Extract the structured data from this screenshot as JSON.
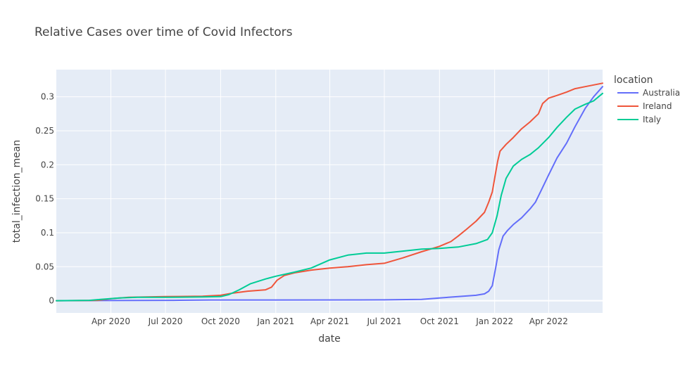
{
  "chart_data": {
    "type": "line",
    "title": "Relative Cases over time of Covid Infectors",
    "xlabel": "date",
    "ylabel": "total_infection_mean",
    "xlim": [
      "2020-01-01",
      "2022-06-30"
    ],
    "ylim": [
      -0.018,
      0.34
    ],
    "x_ticks": [
      {
        "date": "2020-04-01",
        "label": "Apr 2020"
      },
      {
        "date": "2020-07-01",
        "label": "Jul 2020"
      },
      {
        "date": "2020-10-01",
        "label": "Oct 2020"
      },
      {
        "date": "2021-01-01",
        "label": "Jan 2021"
      },
      {
        "date": "2021-04-01",
        "label": "Apr 2021"
      },
      {
        "date": "2021-07-01",
        "label": "Jul 2021"
      },
      {
        "date": "2021-10-01",
        "label": "Oct 2021"
      },
      {
        "date": "2022-01-01",
        "label": "Jan 2022"
      },
      {
        "date": "2022-04-01",
        "label": "Apr 2022"
      }
    ],
    "y_ticks": [
      {
        "value": 0,
        "label": "0"
      },
      {
        "value": 0.05,
        "label": "0.05"
      },
      {
        "value": 0.1,
        "label": "0.1"
      },
      {
        "value": 0.15,
        "label": "0.15"
      },
      {
        "value": 0.2,
        "label": "0.2"
      },
      {
        "value": 0.25,
        "label": "0.25"
      },
      {
        "value": 0.3,
        "label": "0.3"
      }
    ],
    "grid": true,
    "legend_title": "location",
    "legend_position": "top-right outside",
    "series": [
      {
        "name": "Australia",
        "color": "#636efa",
        "points": [
          [
            "2020-01-01",
            0
          ],
          [
            "2020-03-15",
            0.0002
          ],
          [
            "2020-07-15",
            0.0005
          ],
          [
            "2020-09-15",
            0.001
          ],
          [
            "2021-01-01",
            0.001
          ],
          [
            "2021-07-01",
            0.0012
          ],
          [
            "2021-09-01",
            0.002
          ],
          [
            "2021-10-01",
            0.004
          ],
          [
            "2021-11-01",
            0.006
          ],
          [
            "2021-12-01",
            0.008
          ],
          [
            "2021-12-15",
            0.01
          ],
          [
            "2021-12-22",
            0.014
          ],
          [
            "2021-12-28",
            0.022
          ],
          [
            "2022-01-03",
            0.05
          ],
          [
            "2022-01-08",
            0.075
          ],
          [
            "2022-01-15",
            0.095
          ],
          [
            "2022-01-22",
            0.103
          ],
          [
            "2022-02-01",
            0.112
          ],
          [
            "2022-02-15",
            0.122
          ],
          [
            "2022-03-01",
            0.135
          ],
          [
            "2022-03-10",
            0.145
          ],
          [
            "2022-03-20",
            0.163
          ],
          [
            "2022-04-01",
            0.185
          ],
          [
            "2022-04-15",
            0.21
          ],
          [
            "2022-05-01",
            0.232
          ],
          [
            "2022-05-15",
            0.256
          ],
          [
            "2022-06-01",
            0.283
          ],
          [
            "2022-06-15",
            0.3
          ],
          [
            "2022-06-30",
            0.315
          ]
        ]
      },
      {
        "name": "Ireland",
        "color": "#ef553b",
        "points": [
          [
            "2020-01-01",
            0
          ],
          [
            "2020-03-10",
            0.0005
          ],
          [
            "2020-04-01",
            0.003
          ],
          [
            "2020-05-01",
            0.005
          ],
          [
            "2020-07-01",
            0.006
          ],
          [
            "2020-09-01",
            0.0065
          ],
          [
            "2020-10-01",
            0.008
          ],
          [
            "2020-10-20",
            0.011
          ],
          [
            "2020-11-15",
            0.014
          ],
          [
            "2020-12-15",
            0.016
          ],
          [
            "2020-12-25",
            0.02
          ],
          [
            "2021-01-03",
            0.03
          ],
          [
            "2021-01-15",
            0.037
          ],
          [
            "2021-02-01",
            0.041
          ],
          [
            "2021-03-01",
            0.045
          ],
          [
            "2021-04-01",
            0.048
          ],
          [
            "2021-05-01",
            0.05
          ],
          [
            "2021-06-01",
            0.053
          ],
          [
            "2021-07-01",
            0.055
          ],
          [
            "2021-08-01",
            0.063
          ],
          [
            "2021-09-01",
            0.072
          ],
          [
            "2021-10-01",
            0.08
          ],
          [
            "2021-10-20",
            0.087
          ],
          [
            "2021-11-01",
            0.095
          ],
          [
            "2021-11-15",
            0.105
          ],
          [
            "2021-12-01",
            0.117
          ],
          [
            "2021-12-15",
            0.13
          ],
          [
            "2021-12-22",
            0.145
          ],
          [
            "2021-12-28",
            0.16
          ],
          [
            "2022-01-02",
            0.185
          ],
          [
            "2022-01-06",
            0.205
          ],
          [
            "2022-01-10",
            0.22
          ],
          [
            "2022-01-20",
            0.23
          ],
          [
            "2022-02-01",
            0.24
          ],
          [
            "2022-02-15",
            0.253
          ],
          [
            "2022-03-01",
            0.263
          ],
          [
            "2022-03-15",
            0.275
          ],
          [
            "2022-03-22",
            0.29
          ],
          [
            "2022-04-01",
            0.298
          ],
          [
            "2022-04-15",
            0.302
          ],
          [
            "2022-05-01",
            0.307
          ],
          [
            "2022-05-15",
            0.312
          ],
          [
            "2022-06-01",
            0.315
          ],
          [
            "2022-06-30",
            0.32
          ]
        ]
      },
      {
        "name": "Italy",
        "color": "#00cc96",
        "points": [
          [
            "2020-01-01",
            0
          ],
          [
            "2020-02-25",
            0.0005
          ],
          [
            "2020-03-15",
            0.002
          ],
          [
            "2020-04-15",
            0.004
          ],
          [
            "2020-05-15",
            0.005
          ],
          [
            "2020-07-01",
            0.005
          ],
          [
            "2020-09-01",
            0.0055
          ],
          [
            "2020-10-01",
            0.006
          ],
          [
            "2020-10-15",
            0.009
          ],
          [
            "2020-11-01",
            0.016
          ],
          [
            "2020-11-20",
            0.025
          ],
          [
            "2020-12-15",
            0.032
          ],
          [
            "2021-01-01",
            0.036
          ],
          [
            "2021-02-01",
            0.042
          ],
          [
            "2021-03-01",
            0.048
          ],
          [
            "2021-04-01",
            0.06
          ],
          [
            "2021-05-01",
            0.067
          ],
          [
            "2021-06-01",
            0.07
          ],
          [
            "2021-07-01",
            0.07
          ],
          [
            "2021-08-01",
            0.073
          ],
          [
            "2021-09-01",
            0.076
          ],
          [
            "2021-10-01",
            0.077
          ],
          [
            "2021-11-01",
            0.079
          ],
          [
            "2021-12-01",
            0.084
          ],
          [
            "2021-12-20",
            0.09
          ],
          [
            "2021-12-28",
            0.1
          ],
          [
            "2022-01-05",
            0.125
          ],
          [
            "2022-01-12",
            0.155
          ],
          [
            "2022-01-20",
            0.18
          ],
          [
            "2022-02-01",
            0.198
          ],
          [
            "2022-02-15",
            0.208
          ],
          [
            "2022-03-01",
            0.215
          ],
          [
            "2022-03-15",
            0.225
          ],
          [
            "2022-04-01",
            0.24
          ],
          [
            "2022-04-15",
            0.255
          ],
          [
            "2022-05-01",
            0.27
          ],
          [
            "2022-05-15",
            0.282
          ],
          [
            "2022-06-01",
            0.289
          ],
          [
            "2022-06-15",
            0.294
          ],
          [
            "2022-06-30",
            0.305
          ]
        ]
      }
    ]
  }
}
